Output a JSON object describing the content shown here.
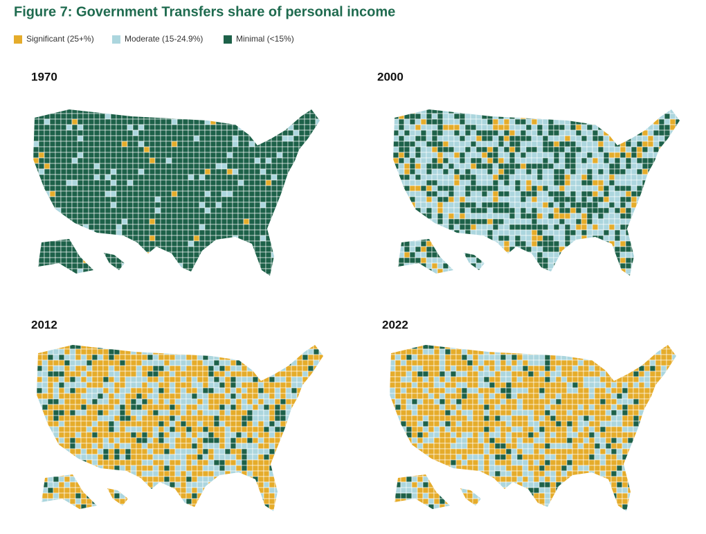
{
  "title": "Figure 7: Government Transfers share of personal income",
  "legend": [
    {
      "name": "Significant (25+%)",
      "color": "#e5ac2b"
    },
    {
      "name": "Moderate (15-24.9%)",
      "color": "#acd6de"
    },
    {
      "name": "Minimal (<15%)",
      "color": "#1d6149"
    }
  ],
  "maps": [
    {
      "label": "1970"
    },
    {
      "label": "2000"
    },
    {
      "label": "2012"
    },
    {
      "label": "2022"
    }
  ]
}
